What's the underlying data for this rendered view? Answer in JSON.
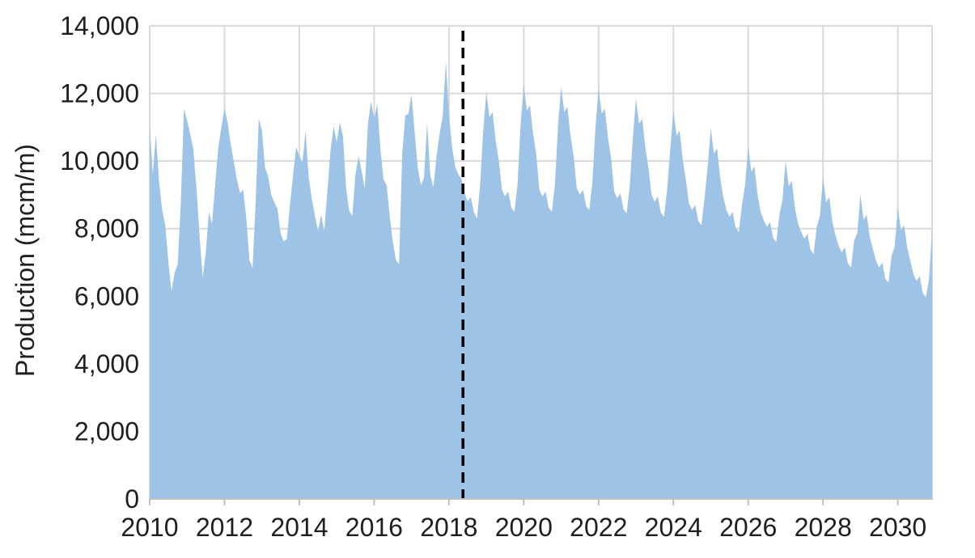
{
  "figure": {
    "background_color": "#FFFFFF",
    "text_color": "#1F1F1F",
    "grid_color": "#D9D9D9",
    "axis_line_color": "#BFBFBF",
    "divider_color": "#000000"
  },
  "chart_data": {
    "type": "area",
    "title": "",
    "xlabel": "",
    "ylabel": "Production (mcm/m)",
    "ylim": [
      0,
      14000
    ],
    "ytick_step": 2000,
    "yticks": [
      0,
      2000,
      4000,
      6000,
      8000,
      10000,
      12000,
      14000
    ],
    "ytick_labels": [
      "0",
      "2,000",
      "4,000",
      "6,000",
      "8,000",
      "10,000",
      "12,000",
      "14,000"
    ],
    "xticks": [
      2010,
      2012,
      2014,
      2016,
      2018,
      2020,
      2022,
      2024,
      2026,
      2028,
      2030
    ],
    "x_start": "2010-01",
    "x_end": "2030-12",
    "frequency": "monthly",
    "grid": true,
    "legend": "none",
    "area_color": "#9DC3E6",
    "divider": {
      "style": "dashed",
      "color": "#000000",
      "month_index": 100.5,
      "date_between": [
        "2018-05",
        "2018-06"
      ]
    },
    "series": [
      {
        "name": "Production",
        "monthly_values": [
          11050,
          9600,
          10800,
          9400,
          8550,
          8100,
          7000,
          6150,
          6700,
          6950,
          8800,
          11550,
          11200,
          10800,
          10350,
          9200,
          7800,
          6550,
          7300,
          8500,
          8140,
          9300,
          10400,
          11000,
          11570,
          11130,
          10500,
          9970,
          9450,
          9050,
          9150,
          8300,
          7070,
          6830,
          8800,
          11260,
          10900,
          9800,
          9550,
          9000,
          8770,
          8580,
          7860,
          7620,
          7700,
          8700,
          9600,
          10420,
          10150,
          9970,
          10890,
          9530,
          8890,
          8380,
          7930,
          8410,
          7930,
          9100,
          10300,
          11040,
          10560,
          11140,
          10730,
          9220,
          8530,
          8380,
          9600,
          10150,
          9700,
          9170,
          11090,
          11760,
          11260,
          11690,
          10370,
          9460,
          9290,
          8380,
          7600,
          7070,
          6950,
          10200,
          11350,
          11400,
          11970,
          10850,
          9800,
          9290,
          9500,
          11140,
          9600,
          9220,
          10130,
          10800,
          11330,
          12950,
          11380,
          10420,
          9840,
          9600,
          9490,
          9050,
          8810,
          8930,
          8500,
          8290,
          9300,
          10900,
          12050,
          11300,
          11450,
          10600,
          10000,
          9150,
          8950,
          9100,
          8620,
          8500,
          9300,
          11100,
          12250,
          11500,
          11650,
          10800,
          10200,
          9150,
          8950,
          9100,
          8620,
          8500,
          9300,
          11050,
          12200,
          11450,
          11600,
          10750,
          10150,
          9200,
          9000,
          9150,
          8670,
          8550,
          9350,
          11000,
          12150,
          11400,
          11550,
          10700,
          10100,
          9100,
          8900,
          9050,
          8570,
          8450,
          9250,
          10700,
          11850,
          11100,
          11250,
          10400,
          9800,
          9000,
          8800,
          8950,
          8470,
          8350,
          9150,
          10350,
          11500,
          10750,
          10900,
          10050,
          9450,
          8750,
          8550,
          8700,
          8220,
          8100,
          8900,
          9820,
          10970,
          10220,
          10370,
          9520,
          8950,
          8550,
          8350,
          8500,
          8020,
          7900,
          8700,
          9290,
          10440,
          9690,
          9840,
          9000,
          8500,
          8250,
          8050,
          8200,
          7720,
          7600,
          8400,
          8860,
          10010,
          9260,
          9410,
          8600,
          8150,
          7900,
          7700,
          7850,
          7370,
          7250,
          8050,
          8380,
          9530,
          8780,
          8930,
          8200,
          7800,
          7500,
          7300,
          7450,
          6970,
          6850,
          7650,
          7860,
          9010,
          8260,
          8410,
          7750,
          7400,
          7050,
          6850,
          7000,
          6520,
          6400,
          7200,
          7470,
          8620,
          7950,
          8100,
          7450,
          7050,
          6650,
          6450,
          6600,
          6100,
          5950,
          6500,
          8000
        ]
      }
    ]
  }
}
